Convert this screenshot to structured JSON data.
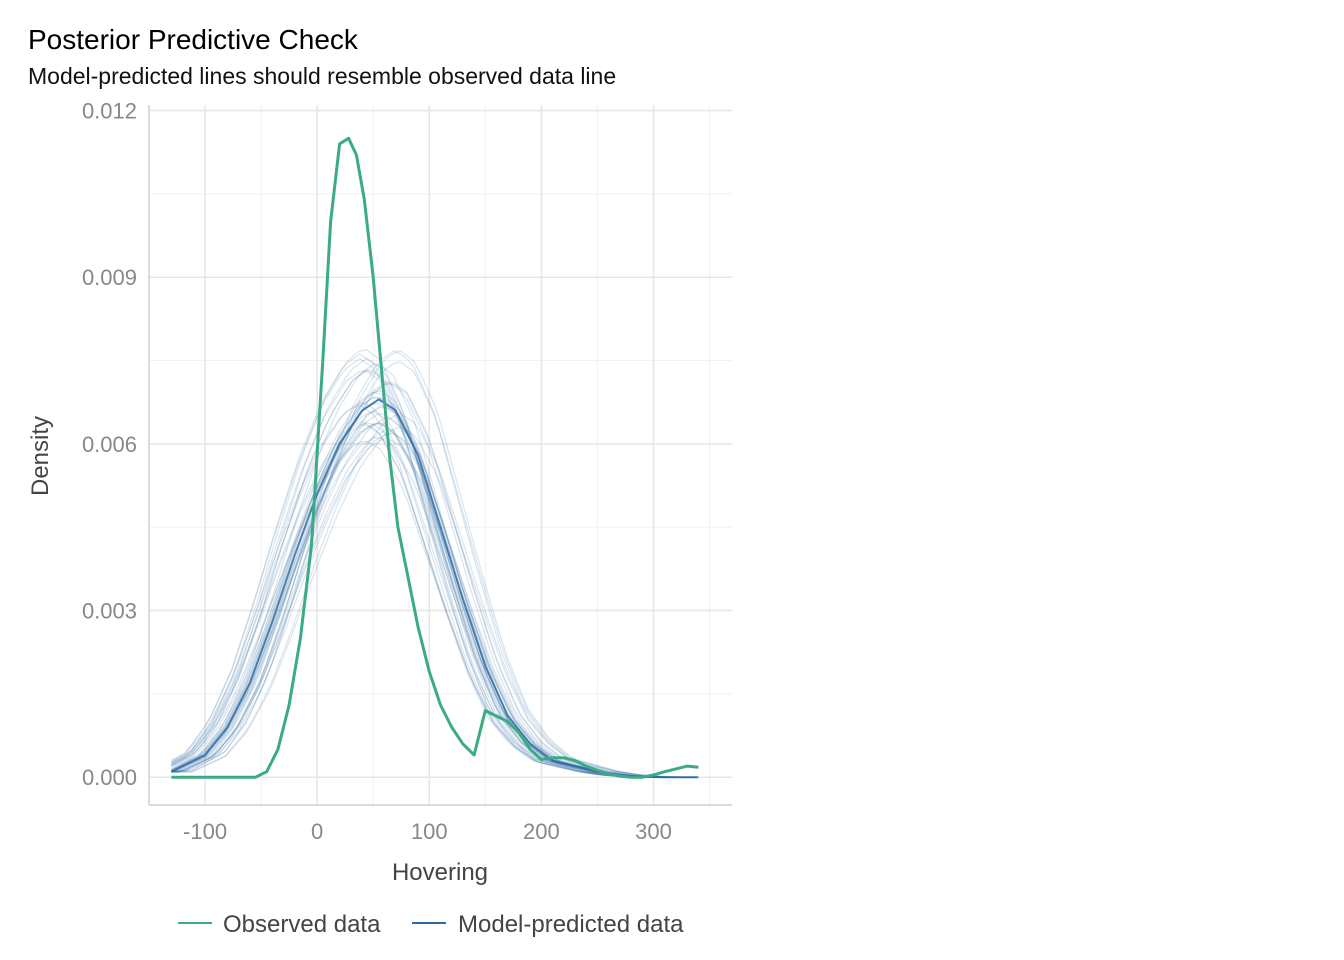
{
  "chart_data": {
    "type": "line",
    "title": "Posterior Predictive Check",
    "subtitle": "Model-predicted lines should resemble observed data line",
    "xlabel": "Hovering",
    "ylabel": "Density",
    "xlim": [
      -150,
      370
    ],
    "ylim": [
      -0.0005,
      0.0121
    ],
    "x_ticks": [
      -100,
      0,
      100,
      200,
      300
    ],
    "x_tick_labels": [
      "-100",
      "0",
      "100",
      "200",
      "300"
    ],
    "y_ticks": [
      0,
      0.003,
      0.006,
      0.009,
      0.012
    ],
    "y_tick_labels": [
      "0.000",
      "0.003",
      "0.006",
      "0.009",
      "0.012"
    ],
    "grid": true,
    "legend_position": "bottom",
    "series": [
      {
        "name": "Observed data",
        "color": "#3aab85",
        "x": [
          -130,
          -100,
          -70,
          -55,
          -45,
          -35,
          -25,
          -15,
          -5,
          5,
          12,
          20,
          28,
          35,
          42,
          50,
          58,
          65,
          72,
          80,
          90,
          100,
          110,
          120,
          130,
          140,
          150,
          160,
          170,
          180,
          190,
          200,
          210,
          220,
          230,
          240,
          250,
          260,
          270,
          280,
          290,
          300,
          310,
          320,
          330,
          340
        ],
        "values": [
          0.0,
          0.0,
          0.0,
          0.0,
          0.0001,
          0.0005,
          0.0013,
          0.0025,
          0.0042,
          0.0075,
          0.01,
          0.0114,
          0.0115,
          0.0112,
          0.0104,
          0.009,
          0.0072,
          0.0057,
          0.0045,
          0.0037,
          0.0027,
          0.0019,
          0.0013,
          0.0009,
          0.0006,
          0.0004,
          0.0012,
          0.0011,
          0.001,
          0.0008,
          0.0005,
          0.00032,
          0.00035,
          0.00035,
          0.0003,
          0.0002,
          0.00012,
          6e-05,
          2e-05,
          0.0,
          0.0,
          4e-05,
          0.0001,
          0.00015,
          0.0002,
          0.00018
        ]
      },
      {
        "name": "Model-predicted data",
        "color": "#2b6aa3",
        "x": [
          -130,
          -120,
          -100,
          -80,
          -60,
          -40,
          -20,
          0,
          20,
          40,
          55,
          70,
          90,
          110,
          130,
          150,
          170,
          190,
          210,
          230,
          250,
          270,
          290,
          310,
          330,
          340
        ],
        "values": [
          0.0001,
          0.0002,
          0.0004,
          0.0009,
          0.0017,
          0.0028,
          0.004,
          0.0051,
          0.006,
          0.0066,
          0.0068,
          0.0066,
          0.0058,
          0.0045,
          0.0032,
          0.002,
          0.0011,
          0.0006,
          0.0003,
          0.0002,
          0.0001,
          4e-05,
          1e-05,
          0.0,
          0.0,
          0.0
        ]
      }
    ]
  }
}
